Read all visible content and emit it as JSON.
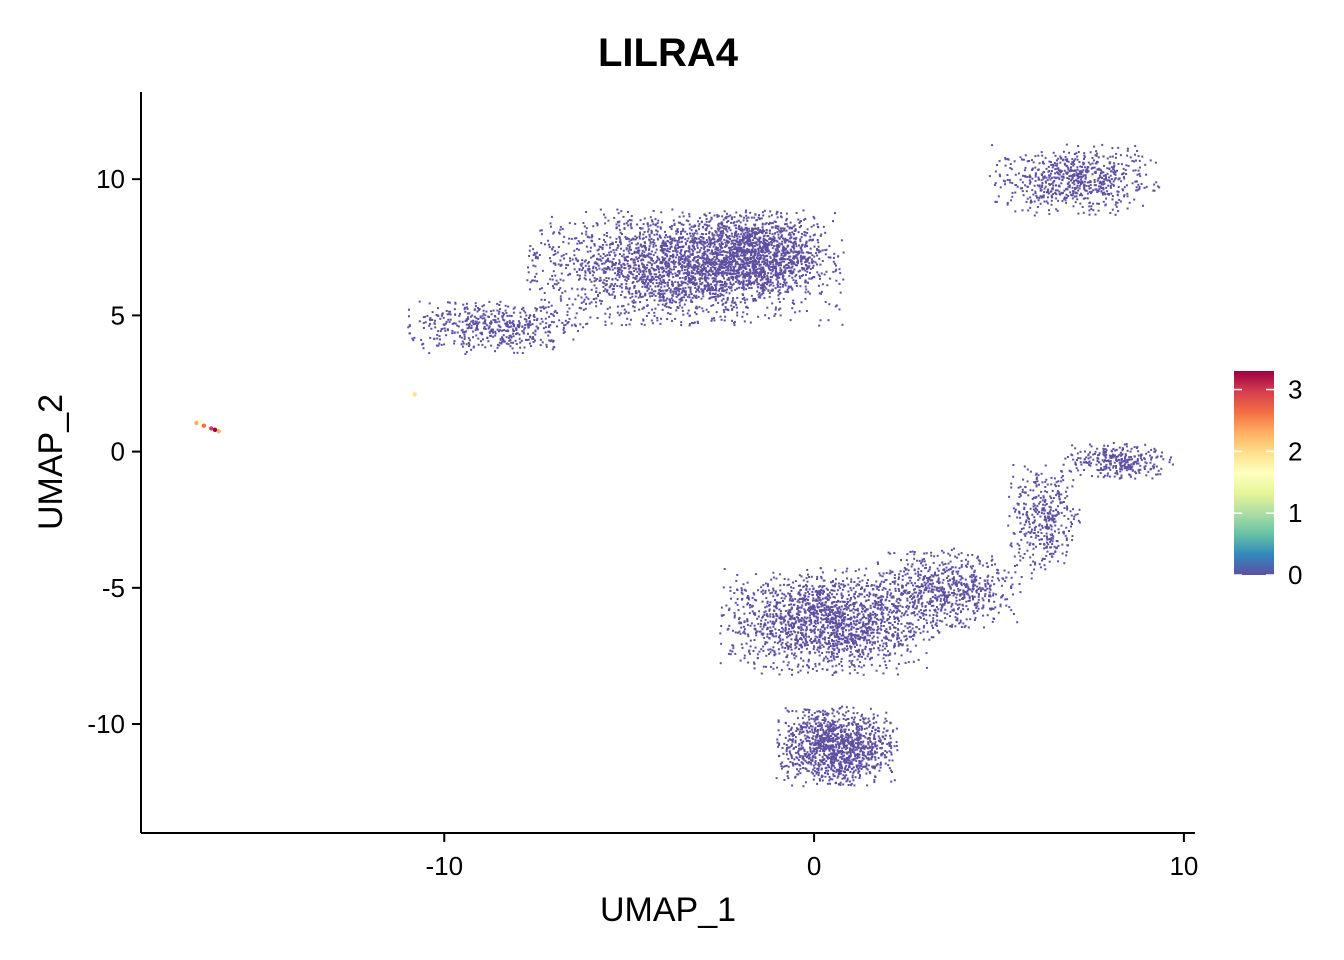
{
  "chart_data": {
    "type": "scatter",
    "title": "LILRA4",
    "xlabel": "UMAP_1",
    "ylabel": "UMAP_2",
    "xlim": [
      -18.2,
      10.3
    ],
    "ylim": [
      -14,
      13.2
    ],
    "x_ticks": [
      -10,
      0,
      10
    ],
    "x_tick_labels": [
      "-10",
      "0",
      "10"
    ],
    "y_ticks": [
      -10,
      -5,
      0,
      5,
      10
    ],
    "y_tick_labels": [
      "-10",
      "-5",
      "0",
      "5",
      "10"
    ],
    "grid": false,
    "legend": {
      "placement": "right",
      "type": "colorbar",
      "range": [
        0,
        3.3
      ],
      "ticks": [
        0,
        1,
        2,
        3
      ],
      "tick_labels": [
        "0",
        "1",
        "2",
        "3"
      ],
      "colors": [
        "#5E4FA2",
        "#3288BD",
        "#66C2A5",
        "#ABDDA4",
        "#E6F598",
        "#FFFFBF",
        "#FEE08B",
        "#FDAE61",
        "#F46D43",
        "#D53E4F",
        "#9E0142"
      ]
    },
    "base_color": "#5E4FA2",
    "clusters": [
      {
        "name": "upper-left-main",
        "center": [
          -3.5,
          6.8
        ],
        "spread": [
          2.6,
          1.3
        ],
        "count": 2600
      },
      {
        "name": "upper-left-tail",
        "center": [
          -8.6,
          4.6
        ],
        "spread": [
          1.5,
          0.6
        ],
        "count": 500
      },
      {
        "name": "upper-left-dense",
        "center": [
          -1.5,
          7.4
        ],
        "spread": [
          1.1,
          0.9
        ],
        "count": 900
      },
      {
        "name": "top-right-ring",
        "center": [
          7.0,
          10.0
        ],
        "spread": [
          1.4,
          0.8
        ],
        "count": 700
      },
      {
        "name": "middle-right",
        "center": [
          8.2,
          -0.3
        ],
        "spread": [
          0.9,
          0.4
        ],
        "count": 300
      },
      {
        "name": "middle-right-arm",
        "center": [
          6.2,
          -2.5
        ],
        "spread": [
          0.6,
          1.3
        ],
        "count": 380
      },
      {
        "name": "lower-mid-chain",
        "center": [
          3.6,
          -5.0
        ],
        "spread": [
          1.2,
          0.9
        ],
        "count": 650
      },
      {
        "name": "lower-main",
        "center": [
          0.4,
          -6.2
        ],
        "spread": [
          1.8,
          1.2
        ],
        "count": 1800
      },
      {
        "name": "bottom-blob",
        "center": [
          0.6,
          -10.8
        ],
        "spread": [
          1.0,
          0.9
        ],
        "count": 1200
      }
    ],
    "expressing_cells": [
      {
        "x": -16.7,
        "y": 1.05,
        "value": 2.2
      },
      {
        "x": -16.5,
        "y": 0.95,
        "value": 2.6
      },
      {
        "x": -16.3,
        "y": 0.85,
        "value": 3.0
      },
      {
        "x": -16.1,
        "y": 0.75,
        "value": 2.4
      },
      {
        "x": -16.6,
        "y": 1.1,
        "value": 1.8
      },
      {
        "x": -16.2,
        "y": 0.8,
        "value": 3.2
      },
      {
        "x": -10.8,
        "y": 2.1,
        "value": 2.0
      }
    ]
  }
}
